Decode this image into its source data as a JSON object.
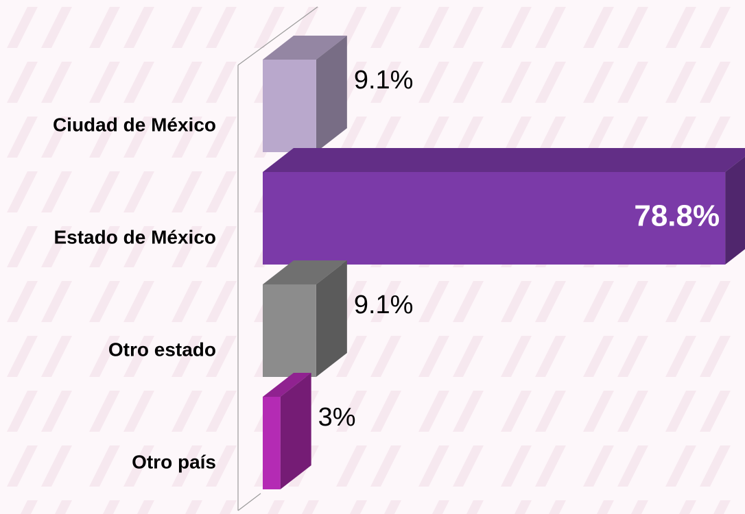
{
  "chart_data": {
    "type": "bar3d-horizontal",
    "categories": [
      "Ciudad de México",
      "Estado de México",
      "Otro estado",
      "Otro país"
    ],
    "values": [
      9.1,
      78.8,
      9.1,
      3
    ],
    "value_labels": [
      "9.1%",
      "78.8%",
      "9.1%",
      "3%"
    ],
    "colors": [
      "#b9a8cc",
      "#7b3aa8",
      "#8c8c8c",
      "#b42bb4"
    ]
  }
}
